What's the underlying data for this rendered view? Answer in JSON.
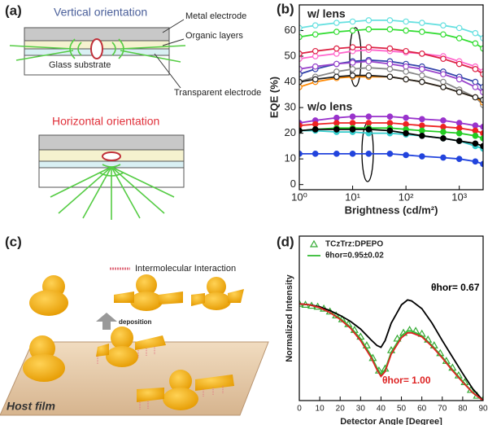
{
  "panels": {
    "a": {
      "label": "(a)",
      "top_title": "Vertical orientation",
      "metal": "Metal electrode",
      "organic": "Organic layers",
      "glass": "Glass substrate",
      "transparent": "Transparent electrode",
      "bottom_title": "Horizontal orientation"
    },
    "c": {
      "label": "(c)",
      "legend": "Intermolecular Interaction",
      "arrow": "deposition",
      "film": "Host film"
    }
  },
  "chart_data": [
    {
      "type": "line",
      "panel_label": "(b)",
      "x_label": "Brightness (cd/m²)",
      "y_label": "EQE (%)",
      "xscale": "log",
      "xlim": [
        1,
        2800
      ],
      "ylim": [
        -2,
        70
      ],
      "xticks": [
        {
          "value": 1,
          "label": "10⁰"
        },
        {
          "value": 10,
          "label": "10¹"
        },
        {
          "value": 100,
          "label": "10²"
        },
        {
          "value": 1000,
          "label": "10³"
        }
      ],
      "yticks": [
        0,
        10,
        20,
        30,
        40,
        50,
        60
      ],
      "annotations": [
        {
          "text": "w/ lens"
        },
        {
          "text": "w/o lens"
        }
      ],
      "x": [
        1,
        2,
        5,
        10,
        20,
        50,
        100,
        200,
        500,
        1000,
        2000,
        2800
      ],
      "series": [
        {
          "color": "#66e0e0",
          "marker": "open-circle",
          "values": [
            61,
            62,
            63,
            63.5,
            64,
            64,
            63.5,
            63,
            62,
            61,
            59,
            57
          ]
        },
        {
          "color": "#33dd33",
          "marker": "open-circle",
          "values": [
            57.5,
            58.5,
            59.5,
            60,
            60.5,
            60.5,
            60,
            59.5,
            58.5,
            57,
            55,
            53
          ]
        },
        {
          "color": "#ff66cc",
          "marker": "open-circle",
          "values": [
            49,
            50,
            51,
            52,
            52.5,
            52,
            51.5,
            51,
            50,
            48,
            46,
            44
          ]
        },
        {
          "color": "#dd2244",
          "marker": "open-circle",
          "values": [
            51,
            52,
            53,
            53.5,
            53.5,
            53,
            52,
            51,
            49,
            47,
            45,
            43
          ]
        },
        {
          "color": "#3344aa",
          "marker": "open-circle",
          "values": [
            43,
            45,
            47,
            48,
            48.5,
            48,
            47,
            46,
            44,
            42,
            40,
            38
          ]
        },
        {
          "color": "#9944cc",
          "marker": "open-circle",
          "values": [
            45,
            46,
            47,
            47.5,
            48,
            47,
            46,
            45,
            43,
            41,
            38,
            36
          ]
        },
        {
          "color": "#888888",
          "marker": "open-circle",
          "values": [
            40,
            42,
            44,
            45,
            45.5,
            45,
            44,
            42.5,
            40,
            37,
            34,
            31
          ]
        },
        {
          "color": "#ff8800",
          "marker": "open-circle",
          "values": [
            38,
            40,
            41.5,
            42,
            42,
            42,
            41,
            40,
            38,
            36,
            34,
            32
          ]
        },
        {
          "color": "#222222",
          "marker": "open-circle",
          "values": [
            40,
            41,
            42,
            42.5,
            42.5,
            42,
            41,
            40,
            38,
            36,
            34,
            33
          ]
        },
        {
          "color": "#9933cc",
          "marker": "circle",
          "values": [
            24,
            25,
            26,
            26.5,
            26.5,
            26.5,
            26,
            25.5,
            25,
            24,
            23,
            22.5
          ]
        },
        {
          "color": "#ee2222",
          "marker": "circle",
          "values": [
            23,
            23.5,
            24,
            24,
            24,
            24,
            23.5,
            23,
            22.5,
            22,
            21,
            20
          ]
        },
        {
          "color": "#22cc22",
          "marker": "circle",
          "values": [
            21,
            21.5,
            22,
            22,
            22,
            22,
            21.5,
            21,
            20.5,
            20,
            19,
            18
          ]
        },
        {
          "color": "#33cccc",
          "marker": "circle",
          "values": [
            21,
            21,
            20.5,
            20.5,
            20,
            20,
            19.5,
            19,
            18,
            17,
            15,
            14
          ]
        },
        {
          "color": "#000000",
          "marker": "circle",
          "values": [
            21,
            21.5,
            21.5,
            21.5,
            21.5,
            21,
            20,
            19,
            18,
            17,
            16,
            15
          ]
        },
        {
          "color": "#2244dd",
          "marker": "circle",
          "values": [
            12,
            12,
            12,
            12,
            12,
            12,
            11.5,
            11,
            10.5,
            10,
            9,
            8
          ]
        }
      ]
    },
    {
      "type": "line",
      "panel_label": "(d)",
      "x_label": "Detector Angle [Degree]",
      "y_label": "Normalized Intensity",
      "xlim": [
        0,
        90
      ],
      "ylim": [
        0,
        1.7
      ],
      "xticks": [
        0,
        10,
        20,
        30,
        40,
        50,
        60,
        70,
        80,
        90
      ],
      "legend": "upper left",
      "annotations": [
        {
          "text": "θhor= 0.67",
          "color": "#000000"
        },
        {
          "text": "θhor= 1.00",
          "color": "#dd2222"
        }
      ],
      "series": [
        {
          "name": "TCzTrz:DPEPO",
          "color": "#33aa33",
          "mode": "markers",
          "marker": "open-triangle",
          "x": [
            0,
            3,
            6,
            9,
            12,
            15,
            18,
            21,
            24,
            27,
            30,
            33,
            36,
            39,
            42,
            45,
            48,
            51,
            54,
            57,
            60,
            63,
            66,
            69,
            72,
            75,
            78,
            81,
            84,
            87,
            90
          ],
          "values": [
            1.0,
            0.99,
            0.98,
            0.97,
            0.95,
            0.92,
            0.88,
            0.84,
            0.79,
            0.73,
            0.66,
            0.57,
            0.44,
            0.31,
            0.33,
            0.52,
            0.64,
            0.7,
            0.73,
            0.72,
            0.69,
            0.63,
            0.57,
            0.49,
            0.41,
            0.34,
            0.26,
            0.19,
            0.11,
            0.05,
            0.01
          ]
        },
        {
          "name": "θhor=0.95±0.02",
          "color": "#33bb33",
          "mode": "line",
          "x": [
            0,
            5,
            10,
            15,
            20,
            25,
            30,
            35,
            38,
            40,
            42,
            45,
            50,
            53,
            55,
            60,
            65,
            70,
            75,
            80,
            85,
            90
          ],
          "values": [
            1.0,
            0.99,
            0.96,
            0.91,
            0.85,
            0.76,
            0.64,
            0.47,
            0.34,
            0.27,
            0.32,
            0.5,
            0.67,
            0.72,
            0.72,
            0.67,
            0.57,
            0.45,
            0.32,
            0.2,
            0.08,
            0.0
          ]
        },
        {
          "color": "#000000",
          "mode": "line",
          "x": [
            0,
            5,
            10,
            15,
            20,
            25,
            30,
            35,
            38,
            40,
            42,
            45,
            50,
            53,
            55,
            60,
            65,
            70,
            75,
            80,
            85,
            90
          ],
          "values": [
            1.0,
            0.99,
            0.97,
            0.93,
            0.88,
            0.82,
            0.74,
            0.63,
            0.57,
            0.55,
            0.62,
            0.8,
            0.99,
            1.04,
            1.03,
            0.95,
            0.8,
            0.62,
            0.45,
            0.28,
            0.12,
            0.0
          ]
        },
        {
          "color": "#dd2222",
          "mode": "line",
          "x": [
            0,
            5,
            10,
            15,
            20,
            25,
            30,
            35,
            38,
            40,
            42,
            45,
            50,
            53,
            55,
            60,
            65,
            70,
            75,
            80,
            85,
            90
          ],
          "values": [
            1.0,
            0.99,
            0.96,
            0.91,
            0.84,
            0.75,
            0.62,
            0.45,
            0.32,
            0.25,
            0.3,
            0.48,
            0.65,
            0.7,
            0.7,
            0.66,
            0.56,
            0.44,
            0.31,
            0.19,
            0.08,
            0.0
          ]
        }
      ]
    }
  ]
}
